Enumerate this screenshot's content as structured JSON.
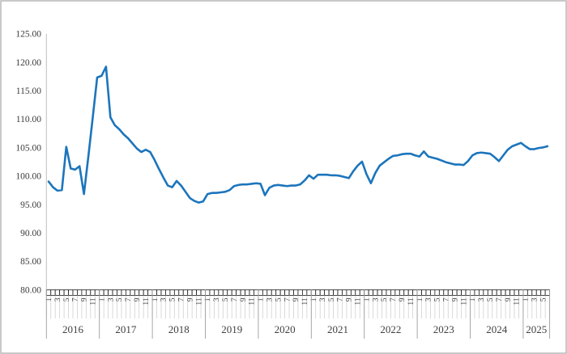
{
  "chart_data": {
    "type": "line",
    "title": "",
    "x_unit": "month",
    "legend": "none",
    "grid": false,
    "ylim": [
      80,
      125
    ],
    "y_ticks": [
      {
        "value": 125,
        "label": "125.00"
      },
      {
        "value": 120,
        "label": "120.00"
      },
      {
        "value": 115,
        "label": "115.00"
      },
      {
        "value": 110,
        "label": "110.00"
      },
      {
        "value": 105,
        "label": "105.00"
      },
      {
        "value": 100,
        "label": "100.00"
      },
      {
        "value": 95,
        "label": "95.00"
      },
      {
        "value": 90,
        "label": "90.00"
      },
      {
        "value": 85,
        "label": "85.00"
      },
      {
        "value": 80,
        "label": "80.00"
      }
    ],
    "month_tick_labels": [
      "1",
      "3",
      "5",
      "7",
      "9",
      "11"
    ],
    "years": [
      {
        "year": "2016",
        "values": [
          99.0,
          98.0,
          97.4,
          97.5,
          105.1,
          101.3,
          101.1,
          101.7,
          96.8,
          103.4,
          110.3,
          117.3
        ]
      },
      {
        "year": "2017",
        "values": [
          117.6,
          119.2,
          110.3,
          108.9,
          108.2,
          107.3,
          106.6,
          105.7,
          104.8,
          104.2,
          104.6,
          104.2
        ]
      },
      {
        "year": "2018",
        "values": [
          102.8,
          101.2,
          99.7,
          98.3,
          98.0,
          99.1,
          98.3,
          97.2,
          96.1,
          95.6,
          95.3,
          95.5
        ]
      },
      {
        "year": "2019",
        "values": [
          96.8,
          97.0,
          97.0,
          97.1,
          97.2,
          97.5,
          98.2,
          98.4,
          98.5,
          98.5,
          98.6,
          98.7
        ]
      },
      {
        "year": "2020",
        "values": [
          98.6,
          96.6,
          97.9,
          98.3,
          98.4,
          98.3,
          98.2,
          98.3,
          98.3,
          98.5,
          99.2,
          100.1
        ]
      },
      {
        "year": "2021",
        "values": [
          99.5,
          100.2,
          100.2,
          100.2,
          100.1,
          100.1,
          100.0,
          99.8,
          99.6,
          100.8,
          101.8,
          102.5
        ]
      },
      {
        "year": "2022",
        "values": [
          100.3,
          98.7,
          100.5,
          101.8,
          102.4,
          103.0,
          103.5,
          103.6,
          103.8,
          103.9,
          103.9,
          103.6
        ]
      },
      {
        "year": "2023",
        "values": [
          103.4,
          104.3,
          103.4,
          103.2,
          103.0,
          102.7,
          102.4,
          102.2,
          102.0,
          102.0,
          101.9,
          102.6
        ]
      },
      {
        "year": "2024",
        "values": [
          103.6,
          104.0,
          104.1,
          104.0,
          103.9,
          103.3,
          102.6,
          103.6,
          104.6,
          105.2,
          105.5,
          105.8
        ]
      },
      {
        "year": "2025",
        "values": [
          105.2,
          104.7,
          104.7,
          104.9,
          105.0,
          105.2
        ]
      }
    ]
  },
  "colors": {
    "line": "#1c75bc",
    "axis_line": "#bfbfbf",
    "tick_box_stroke": "#1a1a1a",
    "month_grid": "#d0d0d0",
    "year_separator": "#9e9e9e",
    "label": "#404040",
    "y_label": "#3b3b3b",
    "chart_border": "#b7b7b7",
    "background": "#ffffff"
  }
}
